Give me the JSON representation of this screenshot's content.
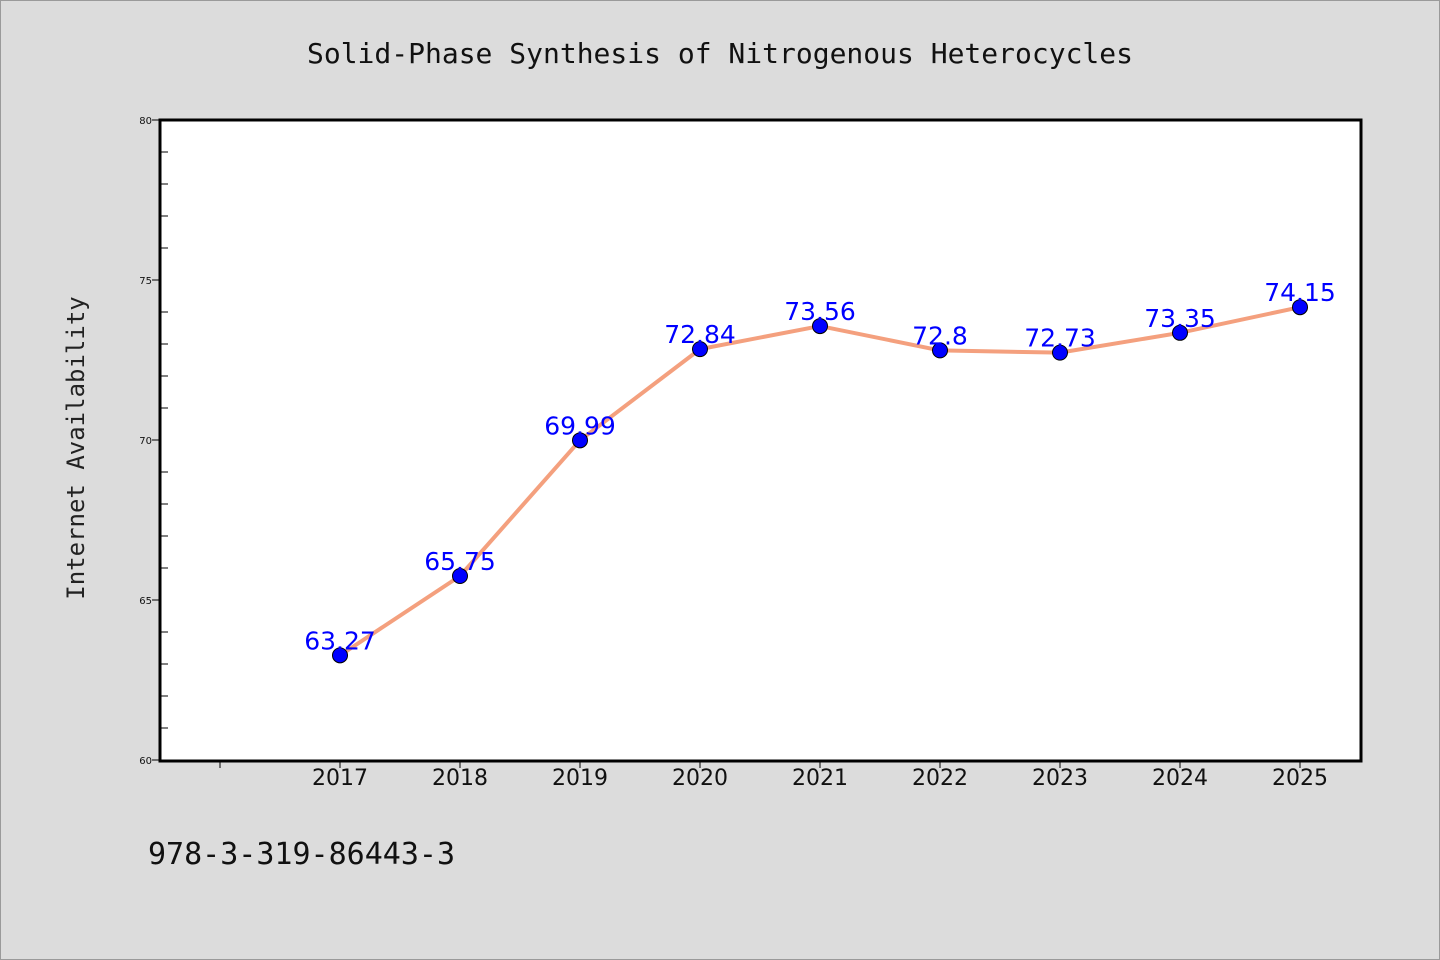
{
  "chart_data": {
    "type": "line",
    "title": "Solid-Phase Synthesis of Nitrogenous Heterocycles",
    "xlabel": "",
    "ylabel": "Internet Availability",
    "categories": [
      "2017",
      "2018",
      "2019",
      "2020",
      "2021",
      "2022",
      "2023",
      "2024",
      "2025"
    ],
    "series": [
      {
        "values": [
          63.27,
          65.75,
          69.99,
          72.84,
          73.56,
          72.8,
          72.73,
          73.35,
          74.15
        ],
        "data_labels": [
          "63.27",
          "65.75",
          "69.99",
          "72.84",
          "73.56",
          "72.8",
          "72.73",
          "73.35",
          "74.15"
        ],
        "line_color": "#f4a07e",
        "marker_color": "#0000ff"
      }
    ],
    "ylim": [
      60,
      80
    ],
    "yticks": [
      "60",
      "65",
      "70",
      "75",
      "80"
    ],
    "grid": false,
    "legend": "none",
    "label_color": "#0000ff",
    "background_color": "#dcdcdc",
    "plot_background_color": "#ffffff"
  },
  "footer": {
    "isbn": "978-3-319-86443-3"
  }
}
